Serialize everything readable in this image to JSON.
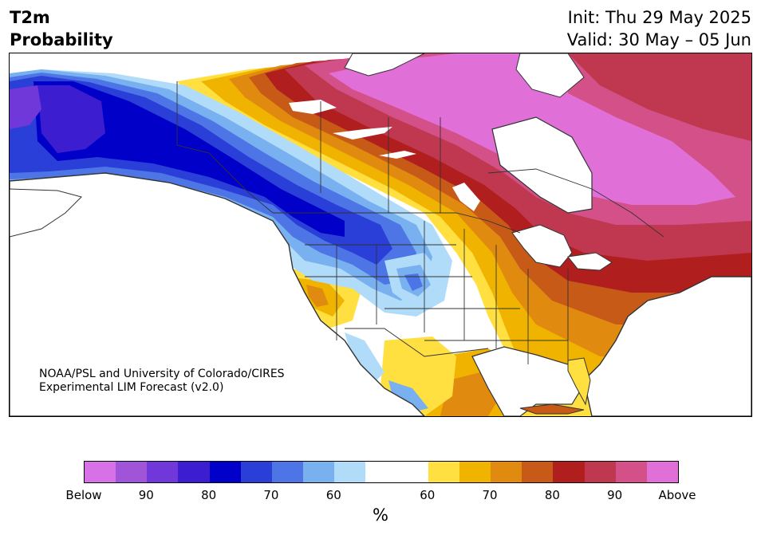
{
  "header": {
    "title_line1": "T2m",
    "title_line2": "Probability",
    "init_text": "Init: Thu 29 May 2025",
    "valid_text": "Valid: 30 May – 05 Jun"
  },
  "credit": {
    "line1": "NOAA/PSL and University of Colorado/CIRES",
    "line2": "Experimental LIM Forecast (v2.0)"
  },
  "colorbar": {
    "colors": [
      "#d870e8",
      "#a055d8",
      "#7038d8",
      "#3c1ed0",
      "#0000c8",
      "#2a3ed8",
      "#4d75e6",
      "#78b0f0",
      "#b0dcfa",
      "#ffffff",
      "#ffffff",
      "#ffe040",
      "#f0b400",
      "#e08a10",
      "#c85a18",
      "#b01e1e",
      "#c03850",
      "#d45088",
      "#e070d8"
    ],
    "tick_labels": [
      "Below",
      "90",
      "80",
      "70",
      "60",
      "60",
      "70",
      "80",
      "90",
      "Above"
    ],
    "unit": "%"
  },
  "legend_meaning": {
    "left_side": "Below",
    "right_side": "Above"
  }
}
